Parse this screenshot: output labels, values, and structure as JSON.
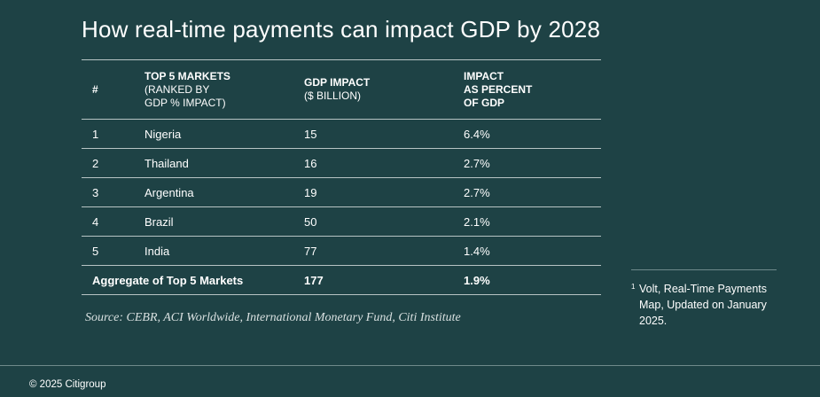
{
  "title": "How real-time payments can impact GDP by 2028",
  "table": {
    "headers": {
      "num": "#",
      "market_line1": "TOP 5 MARKETS",
      "market_line2": "(RANKED BY",
      "market_line3": "GDP % IMPACT)",
      "gdp_line1": "GDP IMPACT",
      "gdp_line2": "($ BILLION)",
      "pct_line1": "IMPACT",
      "pct_line2": "AS PERCENT",
      "pct_line3": "OF GDP"
    },
    "rows": [
      {
        "num": "1",
        "market": "Nigeria",
        "gdp": "15",
        "pct": "6.4%"
      },
      {
        "num": "2",
        "market": "Thailand",
        "gdp": "16",
        "pct": "2.7%"
      },
      {
        "num": "3",
        "market": "Argentina",
        "gdp": "19",
        "pct": "2.7%"
      },
      {
        "num": "4",
        "market": "Brazil",
        "gdp": "50",
        "pct": "2.1%"
      },
      {
        "num": "5",
        "market": "India",
        "gdp": "77",
        "pct": "1.4%"
      }
    ],
    "aggregate": {
      "label": "Aggregate of Top 5 Markets",
      "gdp": "177",
      "pct": "1.9%"
    }
  },
  "source": "Source: CEBR, ACI Worldwide, International Monetary Fund, Citi Institute",
  "footnote": {
    "marker": "1",
    "text": "Volt, Real-Time Payments Map, Updated on January 2025."
  },
  "copyright": "© 2025 Citigroup",
  "colors": {
    "background": "#1e4245",
    "rule": "#b7c4c4",
    "text": "#ffffff"
  }
}
